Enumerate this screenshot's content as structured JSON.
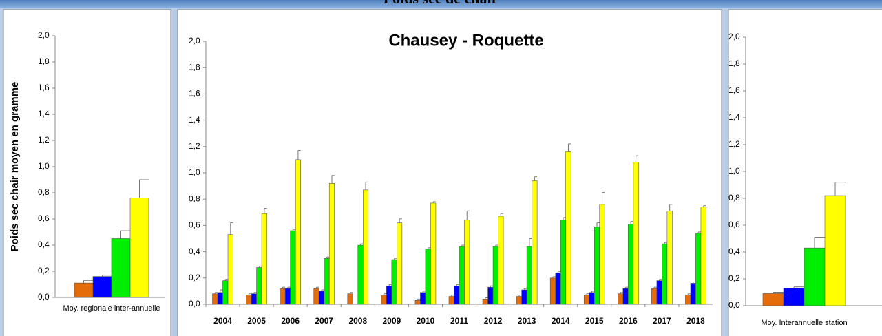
{
  "header": {
    "title": "Poids sec de chair"
  },
  "chart_data": [
    {
      "type": "bar",
      "ylabel": "Poids sec chair moyen en gramme",
      "categories": [
        "Moy. regionale inter-annuelle"
      ],
      "series": [
        {
          "color": "#e46c0a",
          "values": [
            0.11
          ],
          "errors": [
            0.02
          ]
        },
        {
          "color": "#0000ff",
          "values": [
            0.16
          ],
          "errors": [
            0.01
          ]
        },
        {
          "color": "#00ee00",
          "values": [
            0.45
          ],
          "errors": [
            0.06
          ]
        },
        {
          "color": "#ffff00",
          "values": [
            0.76
          ],
          "errors": [
            0.14
          ]
        }
      ],
      "ylim": [
        0,
        2
      ],
      "yticks": [
        {
          "value": 0,
          "label": "0,0"
        },
        {
          "value": 0.2,
          "label": "0,2"
        },
        {
          "value": 0.4,
          "label": "0,4"
        },
        {
          "value": 0.6,
          "label": "0,6"
        },
        {
          "value": 0.8,
          "label": "0,8"
        },
        {
          "value": 1,
          "label": "1,0"
        },
        {
          "value": 1.2,
          "label": "1,2"
        },
        {
          "value": 1.4,
          "label": "1,4"
        },
        {
          "value": 1.6,
          "label": "1,6"
        },
        {
          "value": 1.8,
          "label": "1,8"
        },
        {
          "value": 2,
          "label": "2,0"
        }
      ]
    },
    {
      "type": "bar",
      "title": "Chausey - Roquette",
      "categories": [
        "2004",
        "2005",
        "2006",
        "2007",
        "2008",
        "2009",
        "2010",
        "2011",
        "2012",
        "2013",
        "2014",
        "2015",
        "2016",
        "2017",
        "2018"
      ],
      "series": [
        {
          "color": "#e46c0a",
          "values": [
            0.08,
            0.07,
            0.12,
            0.12,
            0.08,
            0.07,
            0.03,
            0.06,
            0.04,
            0.06,
            0.2,
            0.07,
            0.08,
            0.12,
            0.07
          ],
          "errors": [
            0.01,
            0.01,
            0.01,
            0.01,
            0.01,
            0.01,
            0.01,
            0.01,
            0.01,
            0.01,
            0.01,
            0.01,
            0.01,
            0.01,
            0.01
          ]
        },
        {
          "color": "#0000ff",
          "values": [
            0.09,
            0.08,
            0.12,
            0.1,
            null,
            0.14,
            0.09,
            0.14,
            0.13,
            0.11,
            0.24,
            0.09,
            0.12,
            0.18,
            0.16
          ],
          "errors": [
            0.02,
            0.01,
            0.01,
            0.01,
            null,
            0.01,
            0.01,
            0.01,
            0.01,
            0.01,
            0.01,
            0.01,
            0.01,
            0.01,
            0.01
          ]
        },
        {
          "color": "#00ee00",
          "values": [
            0.18,
            0.28,
            0.56,
            0.35,
            0.45,
            0.34,
            0.42,
            0.44,
            0.44,
            0.44,
            0.64,
            0.59,
            0.61,
            0.46,
            0.54
          ],
          "errors": [
            0.01,
            0.01,
            0.01,
            0.01,
            0.01,
            0.01,
            0.01,
            0.01,
            0.01,
            0.06,
            0.02,
            0.03,
            0.02,
            0.01,
            0.01
          ]
        },
        {
          "color": "#ffff00",
          "values": [
            0.53,
            0.69,
            1.1,
            0.92,
            0.87,
            0.62,
            0.77,
            0.64,
            0.67,
            0.94,
            1.16,
            0.76,
            1.08,
            0.71,
            0.74
          ],
          "errors": [
            0.09,
            0.04,
            0.07,
            0.06,
            0.06,
            0.03,
            0.01,
            0.07,
            0.02,
            0.03,
            0.06,
            0.09,
            0.05,
            0.05,
            0.01
          ]
        }
      ],
      "ylim": [
        0,
        2
      ],
      "yticks": [
        {
          "value": 0,
          "label": "0,0"
        },
        {
          "value": 0.2,
          "label": "0,2"
        },
        {
          "value": 0.4,
          "label": "0,4"
        },
        {
          "value": 0.6,
          "label": "0,6"
        },
        {
          "value": 0.8,
          "label": "0,8"
        },
        {
          "value": 1,
          "label": "1,0"
        },
        {
          "value": 1.2,
          "label": "1,2"
        },
        {
          "value": 1.4,
          "label": "1,4"
        },
        {
          "value": 1.6,
          "label": "1,6"
        },
        {
          "value": 1.8,
          "label": "1,8"
        },
        {
          "value": 2,
          "label": "2,0"
        }
      ]
    },
    {
      "type": "bar",
      "categories": [
        "Moy. Interannuelle station"
      ],
      "series": [
        {
          "color": "#e46c0a",
          "values": [
            0.09
          ],
          "errors": [
            0.01
          ]
        },
        {
          "color": "#0000ff",
          "values": [
            0.13
          ],
          "errors": [
            0.01
          ]
        },
        {
          "color": "#00ee00",
          "values": [
            0.43
          ],
          "errors": [
            0.08
          ]
        },
        {
          "color": "#ffff00",
          "values": [
            0.82
          ],
          "errors": [
            0.1
          ]
        }
      ],
      "ylim": [
        0,
        2
      ],
      "yticks": [
        {
          "value": 0,
          "label": "0,0"
        },
        {
          "value": 0.2,
          "label": "0,2"
        },
        {
          "value": 0.4,
          "label": "0,4"
        },
        {
          "value": 0.6,
          "label": "0,6"
        },
        {
          "value": 0.8,
          "label": "0,8"
        },
        {
          "value": 1,
          "label": "1,0"
        },
        {
          "value": 1.2,
          "label": "1,2"
        },
        {
          "value": 1.4,
          "label": "1,4"
        },
        {
          "value": 1.6,
          "label": "1,6"
        },
        {
          "value": 1.8,
          "label": "1,8"
        },
        {
          "value": 2,
          "label": "2,0"
        }
      ]
    }
  ]
}
